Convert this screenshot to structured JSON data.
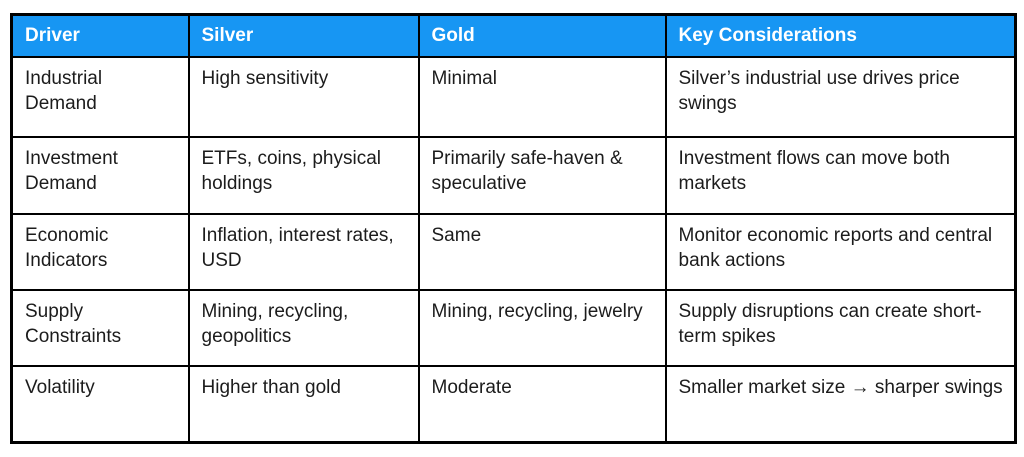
{
  "colors": {
    "header_bg": "#1796F3",
    "header_text": "#ffffff",
    "border": "#000000",
    "body_text": "#1c1c1c",
    "page_bg": "#ffffff"
  },
  "table": {
    "headers": [
      "Driver",
      "Silver",
      "Gold",
      "Key Considerations"
    ],
    "rows": [
      {
        "cells": [
          "Industrial Demand",
          "High sensitivity",
          "Minimal",
          "Silver’s industrial use drives price swings"
        ]
      },
      {
        "cells": [
          "Investment Demand",
          "ETFs, coins, physical holdings",
          "Primarily safe-haven & speculative",
          "Investment flows can move both markets"
        ]
      },
      {
        "cells": [
          "Economic Indicators",
          "Inflation, interest rates, USD",
          "Same",
          "Monitor economic reports and central bank actions"
        ]
      },
      {
        "cells": [
          "Supply Constraints",
          "Mining, recycling, geopolitics",
          "Mining, recycling, jewelry",
          "Supply disruptions can create short-term spikes"
        ]
      },
      {
        "cells": [
          "Volatility",
          "Higher than gold",
          "Moderate",
          "Smaller market size → sharper swings"
        ]
      }
    ]
  },
  "chart_data": {
    "type": "table",
    "title": "",
    "columns": [
      "Driver",
      "Silver",
      "Gold",
      "Key Considerations"
    ],
    "rows": [
      [
        "Industrial Demand",
        "High sensitivity",
        "Minimal",
        "Silver’s industrial use drives price swings"
      ],
      [
        "Investment Demand",
        "ETFs, coins, physical holdings",
        "Primarily safe-haven & speculative",
        "Investment flows can move both markets"
      ],
      [
        "Economic Indicators",
        "Inflation, interest rates, USD",
        "Same",
        "Monitor economic reports and central bank actions"
      ],
      [
        "Supply Constraints",
        "Mining, recycling, geopolitics",
        "Mining, recycling, jewelry",
        "Supply disruptions can create short-term spikes"
      ],
      [
        "Volatility",
        "Higher than gold",
        "Moderate",
        "Smaller market size → sharper swings"
      ]
    ],
    "layout_hints": {
      "header_style": "bold white on azure blue",
      "grid": "black 2px solid all borders",
      "body_alignment": "top-left"
    }
  }
}
